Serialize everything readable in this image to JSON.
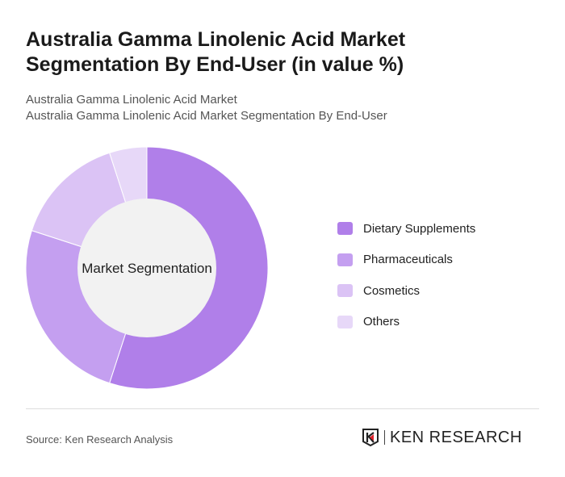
{
  "title": "Australia Gamma Linolenic Acid Market Segmentation By End-User (in value %)",
  "subtitle1": "Australia Gamma Linolenic Acid Market",
  "subtitle2": "Australia Gamma Linolenic Acid Market Segmentation By End-User",
  "source": "Source: Ken Research Analysis",
  "logo_text": "KEN RESEARCH",
  "chart_data": {
    "type": "pie",
    "variant": "donut",
    "center_label": "Market Segmentation",
    "categories": [
      "Dietary Supplements",
      "Pharmaceuticals",
      "Cosmetics",
      "Others"
    ],
    "values": [
      55,
      25,
      15,
      5
    ],
    "unit": "%",
    "colors": [
      "#b07fe9",
      "#c49ff0",
      "#dbc3f5",
      "#e7d8f8"
    ],
    "legend_position": "right"
  }
}
